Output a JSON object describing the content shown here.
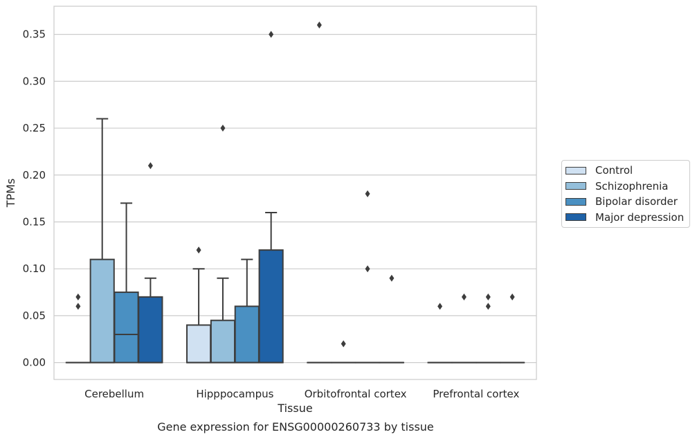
{
  "chart_data": {
    "type": "box",
    "caption": "Gene expression for ENSG00000260733 by tissue",
    "xlabel": "Tissue",
    "ylabel": "TPMs",
    "ylim": [
      -0.018,
      0.38
    ],
    "yticks": [
      "0.00",
      "0.05",
      "0.10",
      "0.15",
      "0.20",
      "0.25",
      "0.30",
      "0.35"
    ],
    "categories": [
      "Cerebellum",
      "Hipppocampus",
      "Orbitofrontal cortex",
      "Prefrontal cortex"
    ],
    "grid": true,
    "legend_position": "right",
    "series": [
      {
        "name": "Control",
        "color": "#d0e1f2",
        "boxes": [
          {
            "category": "Cerebellum",
            "q1": 0,
            "median": 0,
            "q3": 0,
            "whisker_low": 0,
            "whisker_high": 0,
            "outliers": [
              0.06,
              0.07
            ]
          },
          {
            "category": "Hipppocampus",
            "q1": 0,
            "median": 0,
            "q3": 0.04,
            "whisker_low": 0,
            "whisker_high": 0.1,
            "outliers": [
              0.12
            ]
          },
          {
            "category": "Orbitofrontal cortex",
            "q1": 0,
            "median": 0,
            "q3": 0,
            "whisker_low": 0,
            "whisker_high": 0,
            "outliers": [
              0.36
            ]
          },
          {
            "category": "Prefrontal cortex",
            "q1": 0,
            "median": 0,
            "q3": 0,
            "whisker_low": 0,
            "whisker_high": 0,
            "outliers": [
              0.06
            ]
          }
        ]
      },
      {
        "name": "Schizophrenia",
        "color": "#94bfdb",
        "boxes": [
          {
            "category": "Cerebellum",
            "q1": 0,
            "median": 0,
            "q3": 0.11,
            "whisker_low": 0,
            "whisker_high": 0.26,
            "outliers": []
          },
          {
            "category": "Hipppocampus",
            "q1": 0,
            "median": 0,
            "q3": 0.045,
            "whisker_low": 0,
            "whisker_high": 0.09,
            "outliers": [
              0.25
            ]
          },
          {
            "category": "Orbitofrontal cortex",
            "q1": 0,
            "median": 0,
            "q3": 0,
            "whisker_low": 0,
            "whisker_high": 0,
            "outliers": [
              0.02
            ]
          },
          {
            "category": "Prefrontal cortex",
            "q1": 0,
            "median": 0,
            "q3": 0,
            "whisker_low": 0,
            "whisker_high": 0,
            "outliers": [
              0.07
            ]
          }
        ]
      },
      {
        "name": "Bipolar disorder",
        "color": "#4a90c2",
        "boxes": [
          {
            "category": "Cerebellum",
            "q1": 0,
            "median": 0.03,
            "q3": 0.075,
            "whisker_low": 0,
            "whisker_high": 0.17,
            "outliers": []
          },
          {
            "category": "Hipppocampus",
            "q1": 0,
            "median": 0,
            "q3": 0.06,
            "whisker_low": 0,
            "whisker_high": 0.11,
            "outliers": []
          },
          {
            "category": "Orbitofrontal cortex",
            "q1": 0,
            "median": 0,
            "q3": 0,
            "whisker_low": 0,
            "whisker_high": 0,
            "outliers": [
              0.1,
              0.18
            ]
          },
          {
            "category": "Prefrontal cortex",
            "q1": 0,
            "median": 0,
            "q3": 0,
            "whisker_low": 0,
            "whisker_high": 0,
            "outliers": [
              0.06,
              0.07
            ]
          }
        ]
      },
      {
        "name": "Major depression",
        "color": "#1f62a7",
        "boxes": [
          {
            "category": "Cerebellum",
            "q1": 0,
            "median": 0,
            "q3": 0.07,
            "whisker_low": 0,
            "whisker_high": 0.09,
            "outliers": [
              0.21
            ]
          },
          {
            "category": "Hipppocampus",
            "q1": 0,
            "median": 0,
            "q3": 0.12,
            "whisker_low": 0,
            "whisker_high": 0.16,
            "outliers": [
              0.35
            ]
          },
          {
            "category": "Orbitofrontal cortex",
            "q1": 0,
            "median": 0,
            "q3": 0,
            "whisker_low": 0,
            "whisker_high": 0,
            "outliers": [
              0.09
            ]
          },
          {
            "category": "Prefrontal cortex",
            "q1": 0,
            "median": 0,
            "q3": 0,
            "whisker_low": 0,
            "whisker_high": 0,
            "outliers": [
              0.07
            ]
          }
        ]
      }
    ]
  }
}
